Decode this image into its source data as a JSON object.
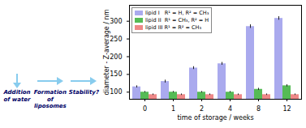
{
  "chart_data": {
    "type": "bar",
    "xlabel": "time of storage / weeks",
    "ylabel": "diameter - Z-average / nm",
    "categories": [
      "0",
      "1",
      "2",
      "4",
      "8",
      "12"
    ],
    "series": [
      {
        "name": "lipid I   R¹ = H, R² = CH₃",
        "color": "#aaaaee",
        "values": [
          115,
          130,
          168,
          180,
          285,
          308
        ],
        "errors": [
          3,
          4,
          4,
          4,
          5,
          5
        ]
      },
      {
        "name": "lipid II  R¹ = CH₃, R² = H",
        "color": "#55bb55",
        "values": [
          100,
          100,
          100,
          100,
          108,
          118
        ],
        "errors": [
          2,
          2,
          2,
          2,
          3,
          3
        ]
      },
      {
        "name": "lipid III R¹ = R² = CH₃",
        "color": "#ee8888",
        "values": [
          93,
          93,
          93,
          93,
          93,
          93
        ],
        "errors": [
          2,
          2,
          2,
          2,
          2,
          2
        ]
      }
    ],
    "ylim": [
      80,
      345
    ],
    "yticks": [
      100,
      150,
      200,
      250,
      300
    ],
    "grid": false,
    "legend": "upper left",
    "annotations": [
      "Addition\nof water",
      "Formation\nof liposomes",
      "Stability?"
    ]
  }
}
